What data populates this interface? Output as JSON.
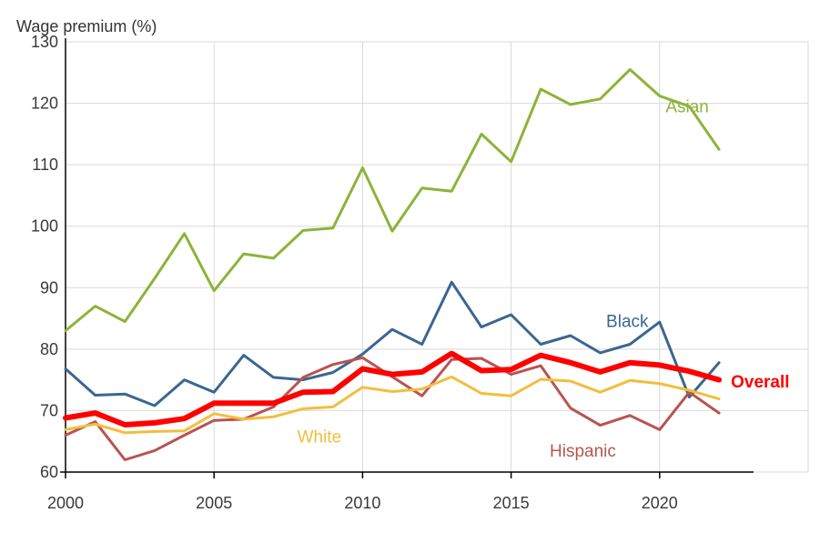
{
  "chart_data": {
    "type": "line",
    "title": "",
    "ylabel": "Wage premium (%)",
    "xlabel": "",
    "xlim": [
      2000,
      2025
    ],
    "ylim": [
      60,
      130
    ],
    "x_ticks": [
      2000,
      2005,
      2010,
      2015,
      2020
    ],
    "y_ticks": [
      60,
      70,
      80,
      90,
      100,
      110,
      120,
      130
    ],
    "grid": true,
    "legend": "inline labels",
    "x": [
      2000,
      2001,
      2002,
      2003,
      2004,
      2005,
      2006,
      2007,
      2008,
      2009,
      2010,
      2011,
      2012,
      2013,
      2014,
      2015,
      2016,
      2017,
      2018,
      2019,
      2020,
      2021,
      2022
    ],
    "series": [
      {
        "name": "Asian",
        "color": "#8db33a",
        "width": 3,
        "values": [
          83,
          87,
          84.5,
          91.5,
          98.8,
          89.5,
          95.5,
          94.8,
          99.3,
          99.7,
          109.5,
          99.2,
          106.2,
          105.7,
          115,
          110.5,
          122.3,
          119.8,
          120.7,
          125.5,
          121.2,
          119.5,
          112.5
        ]
      },
      {
        "name": "Black",
        "color": "#3a6692",
        "width": 3,
        "values": [
          76.8,
          72.5,
          72.7,
          70.8,
          75,
          73,
          79,
          75.4,
          75,
          76.2,
          79.2,
          83.2,
          80.8,
          90.9,
          83.6,
          85.6,
          80.8,
          82.2,
          79.4,
          80.8,
          84.4,
          72.2,
          77.8
        ]
      },
      {
        "name": "Hispanic",
        "color": "#b85450",
        "width": 3,
        "values": [
          66,
          68.2,
          62,
          63.5,
          66,
          68.4,
          68.6,
          70.6,
          75.4,
          77.5,
          78.6,
          75.5,
          72.4,
          78.3,
          78.5,
          75.9,
          77.3,
          70.4,
          67.6,
          69.2,
          66.9,
          73,
          69.6
        ]
      },
      {
        "name": "White",
        "color": "#f2be3e",
        "width": 3,
        "values": [
          66.9,
          67.8,
          66.4,
          66.6,
          66.7,
          69.5,
          68.6,
          69,
          70.3,
          70.6,
          73.8,
          73.1,
          73.5,
          75.5,
          72.8,
          72.4,
          75.1,
          74.8,
          73,
          74.9,
          74.4,
          73.3,
          71.9
        ]
      },
      {
        "name": "Overall",
        "color": "#ff0000",
        "width": 6,
        "values": [
          68.8,
          69.6,
          67.7,
          68,
          68.7,
          71.2,
          71.2,
          71.2,
          73,
          73.1,
          76.8,
          75.9,
          76.3,
          79.3,
          76.5,
          76.7,
          79,
          77.8,
          76.3,
          77.8,
          77.4,
          76.4,
          75
        ]
      }
    ],
    "labels": [
      {
        "text": "Asian",
        "series": "Asian",
        "x": 2020.2,
        "y": 118.5,
        "color": "#8db33a",
        "bold": false
      },
      {
        "text": "Black",
        "series": "Black",
        "x": 2018.2,
        "y": 83.6,
        "color": "#3a6692",
        "bold": false
      },
      {
        "text": "Overall",
        "series": "Overall",
        "x": 2022.4,
        "y": 73.8,
        "color": "#ff0000",
        "bold": true
      },
      {
        "text": "White",
        "series": "White",
        "x": 2007.8,
        "y": 64.8,
        "color": "#f2be3e",
        "bold": false
      },
      {
        "text": "Hispanic",
        "series": "Hispanic",
        "x": 2016.3,
        "y": 62.5,
        "color": "#b85450",
        "bold": false
      }
    ]
  }
}
